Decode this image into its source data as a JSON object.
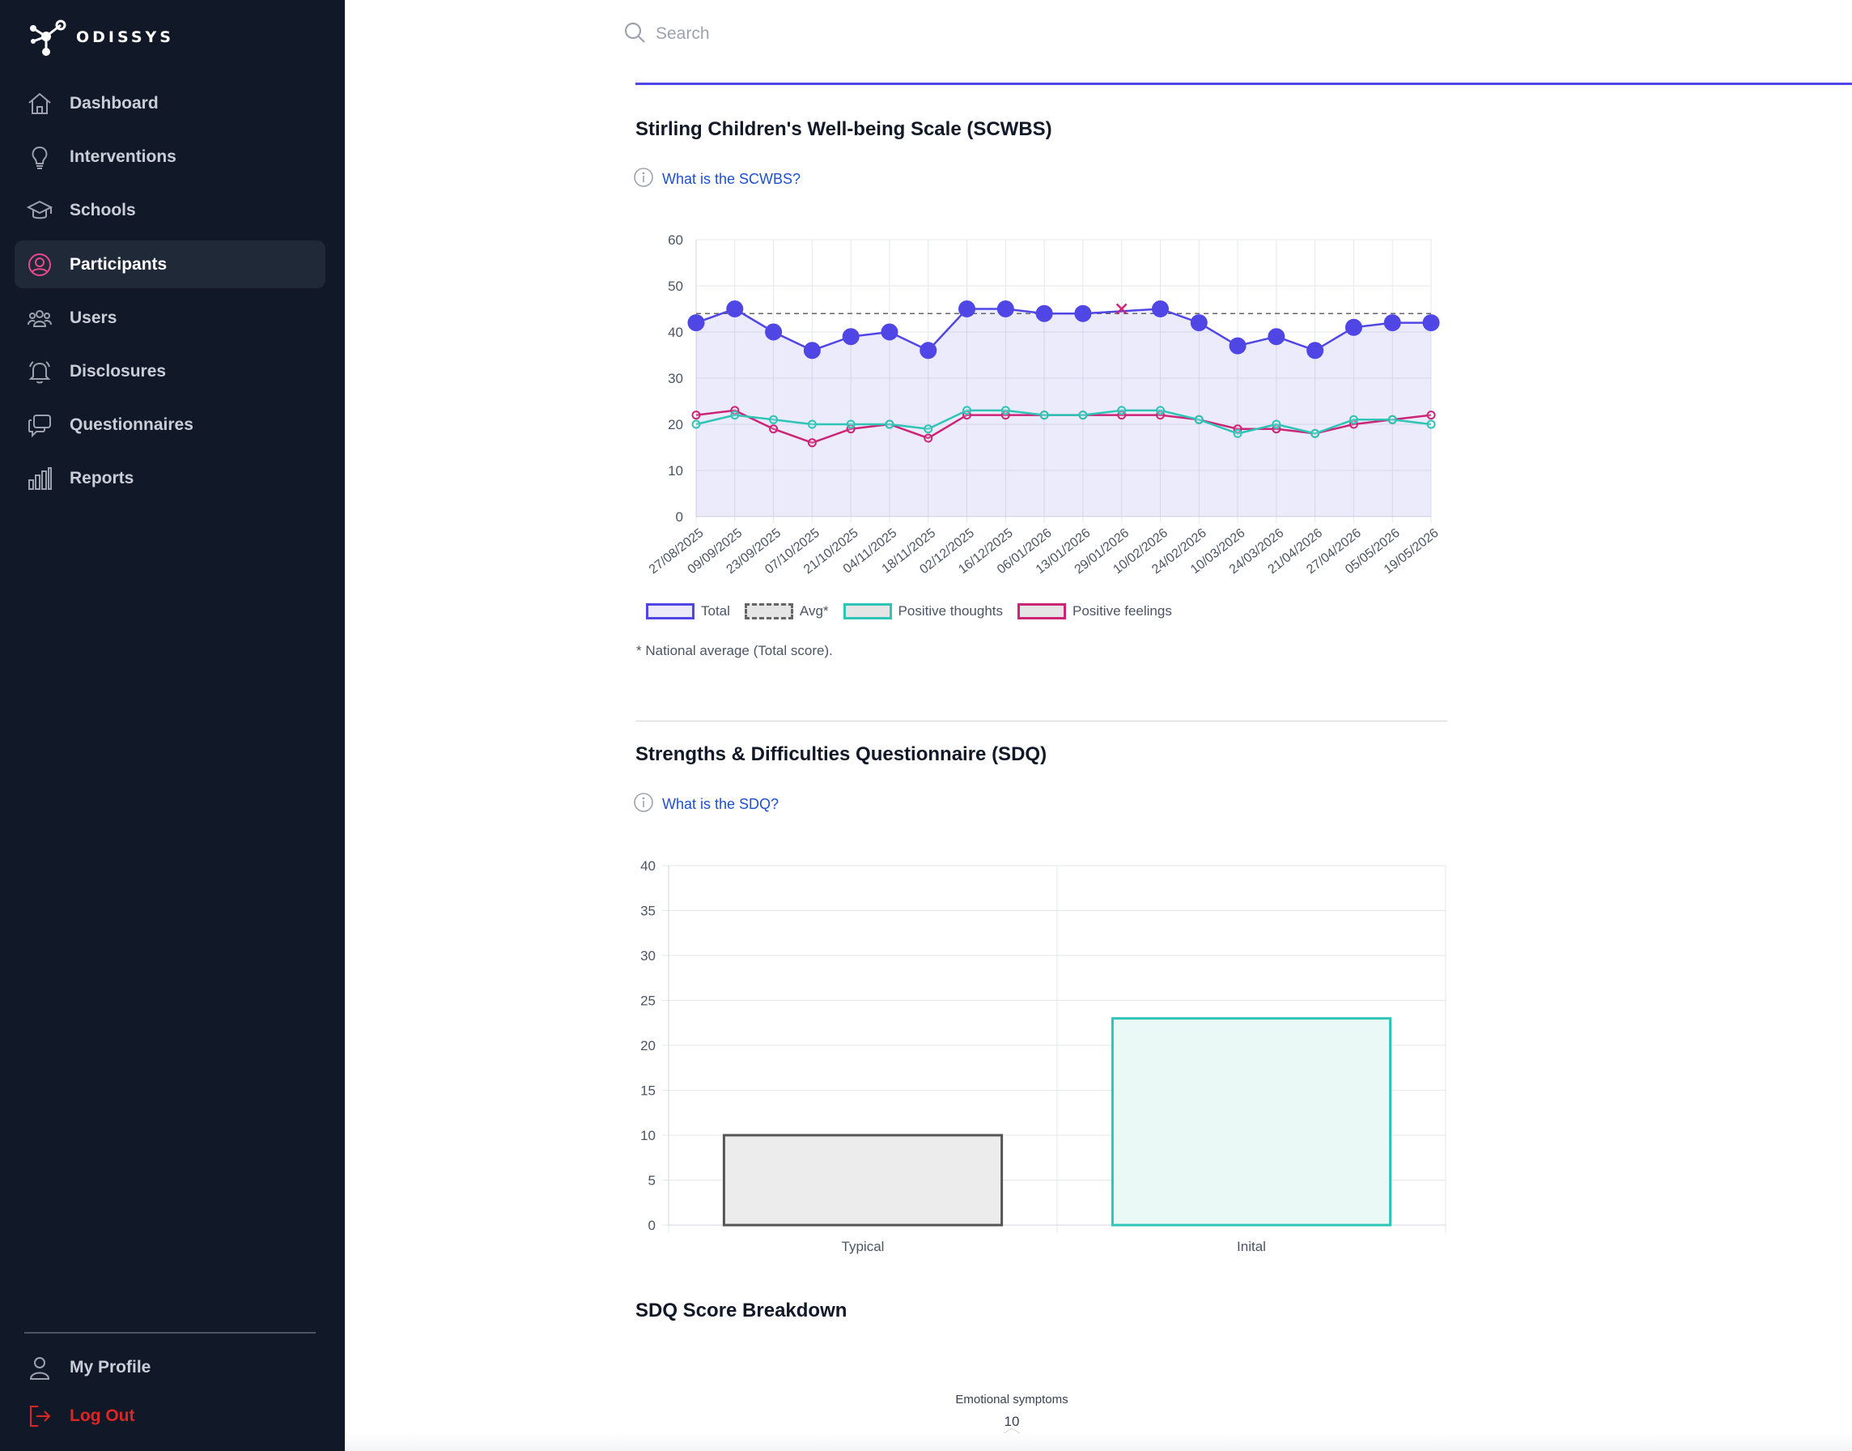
{
  "brand": {
    "name": "ODISSYS"
  },
  "nav": {
    "items": [
      {
        "label": "Dashboard",
        "icon": "home-icon"
      },
      {
        "label": "Interventions",
        "icon": "lightbulb-icon"
      },
      {
        "label": "Schools",
        "icon": "graduation-cap-icon"
      },
      {
        "label": "Participants",
        "icon": "user-circle-icon",
        "active": true
      },
      {
        "label": "Users",
        "icon": "users-icon"
      },
      {
        "label": "Disclosures",
        "icon": "bell-icon"
      },
      {
        "label": "Questionnaires",
        "icon": "chat-bubbles-icon"
      },
      {
        "label": "Reports",
        "icon": "bar-chart-icon"
      }
    ],
    "profile": {
      "label": "My Profile",
      "icon": "user-icon"
    },
    "logout": {
      "label": "Log Out",
      "icon": "logout-icon"
    }
  },
  "search": {
    "placeholder": "Search",
    "value": ""
  },
  "scwbs": {
    "title": "Stirling Children's Well-being Scale (SCWBS)",
    "info_link": "What is the SCWBS?",
    "footnote": "* National average (Total score)."
  },
  "sdq": {
    "title": "Strengths & Difficulties Questionnaire (SDQ)",
    "info_link": "What is the SDQ?"
  },
  "breakdown": {
    "title": "SDQ Score Breakdown",
    "radar_label": "Emotional symptoms",
    "radar_value": "10"
  },
  "colors": {
    "sidebar_bg": "#111827",
    "accent": "#4f46e5",
    "total": "#4f46e5",
    "positive_thoughts": "#2ec4b6",
    "positive_feelings": "#cc2577",
    "typical": "#555555",
    "link": "#1d4ed8",
    "logout": "#dc2626"
  },
  "chart_data": [
    {
      "type": "line",
      "categories": [
        "27/08/2025",
        "09/09/2025",
        "23/09/2025",
        "07/10/2025",
        "21/10/2025",
        "04/11/2025",
        "18/11/2025",
        "02/12/2025",
        "16/12/2025",
        "06/01/2026",
        "13/01/2026",
        "29/01/2026",
        "10/02/2026",
        "24/02/2026",
        "10/03/2026",
        "24/03/2026",
        "21/04/2026",
        "27/04/2026",
        "05/05/2026",
        "19/05/2026"
      ],
      "series": [
        {
          "name": "Total",
          "values": [
            42,
            45,
            40,
            36,
            39,
            40,
            36,
            45,
            45,
            44,
            44,
            null,
            45,
            42,
            37,
            39,
            36,
            41,
            42,
            42
          ],
          "fill": true
        },
        {
          "name": "Avg*",
          "values": [
            44,
            44,
            44,
            44,
            44,
            44,
            44,
            44,
            44,
            44,
            44,
            44,
            44,
            44,
            44,
            44,
            44,
            44,
            44,
            44
          ],
          "dashed": true
        },
        {
          "name": "Positive thoughts",
          "values": [
            20,
            22,
            21,
            20,
            20,
            20,
            19,
            23,
            23,
            22,
            22,
            23,
            23,
            21,
            18,
            20,
            18,
            21,
            21,
            20
          ]
        },
        {
          "name": "Positive feelings",
          "values": [
            22,
            23,
            19,
            16,
            19,
            20,
            17,
            22,
            22,
            22,
            22,
            22,
            22,
            21,
            19,
            19,
            18,
            20,
            21,
            22
          ]
        }
      ],
      "missing_marker": {
        "series": "Total",
        "category": "29/01/2026",
        "value": 45,
        "symbol": "x"
      },
      "ylim": [
        0,
        60
      ],
      "yticks": [
        0,
        10,
        20,
        30,
        40,
        50,
        60
      ],
      "grid": true,
      "legend": "bottom-left"
    },
    {
      "type": "bar",
      "categories": [
        "Typical",
        "Inital"
      ],
      "values": [
        10,
        23
      ],
      "ylim": [
        0,
        40
      ],
      "yticks": [
        0,
        5,
        10,
        15,
        20,
        25,
        30,
        35,
        40
      ],
      "grid": true,
      "legend": "none"
    }
  ]
}
